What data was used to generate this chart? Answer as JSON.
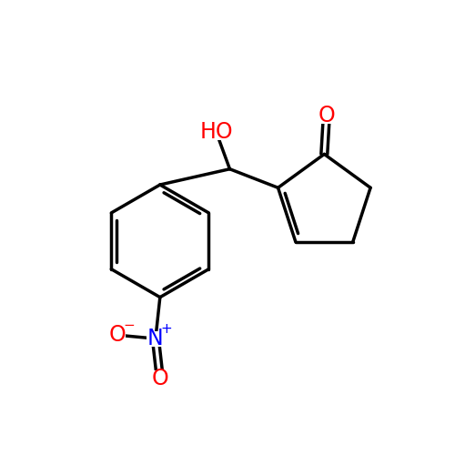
{
  "bg_color": "#ffffff",
  "bond_color": "#000000",
  "bond_width": 2.5,
  "atom_colors": {
    "O": "#ff0000",
    "N": "#0000ff"
  },
  "font_size_label": 17,
  "font_size_super": 11
}
